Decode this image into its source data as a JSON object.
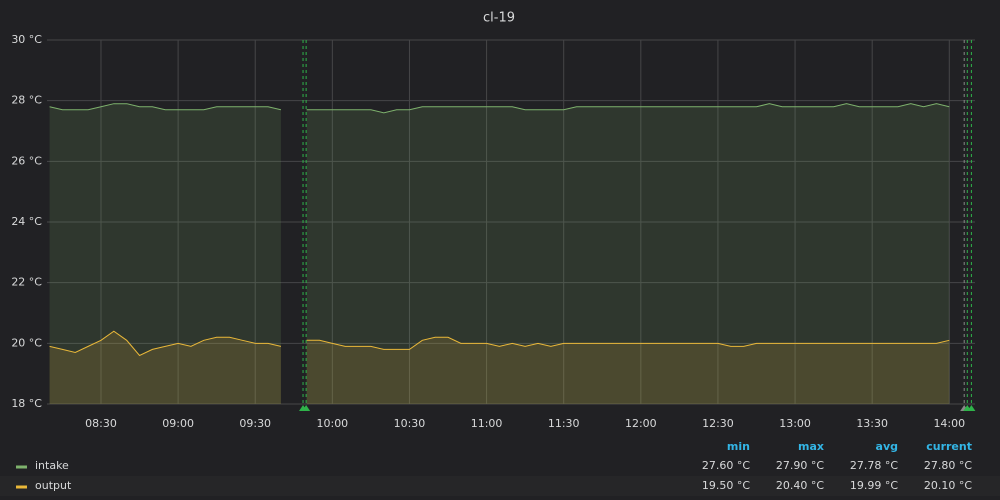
{
  "chart_data": {
    "type": "line",
    "title": "cl-19",
    "x": [
      490,
      495,
      500,
      505,
      510,
      515,
      520,
      525,
      530,
      535,
      540,
      545,
      550,
      555,
      560,
      565,
      570,
      575,
      580,
      585,
      590,
      595,
      600,
      605,
      610,
      615,
      620,
      625,
      630,
      635,
      640,
      645,
      650,
      655,
      660,
      665,
      670,
      675,
      680,
      685,
      690,
      695,
      700,
      705,
      710,
      715,
      720,
      725,
      730,
      735,
      740,
      745,
      750,
      755,
      760,
      765,
      770,
      775,
      780,
      785,
      790,
      795,
      800,
      805,
      810,
      815,
      820,
      825,
      830,
      835,
      840
    ],
    "series": [
      {
        "name": "intake",
        "color": "#7eb26d",
        "stats": [
          "27.60 °C",
          "27.90 °C",
          "27.78 °C",
          "27.80 °C"
        ],
        "values": [
          27.8,
          27.7,
          27.7,
          27.7,
          27.8,
          27.9,
          27.9,
          27.8,
          27.8,
          27.7,
          27.7,
          27.7,
          27.7,
          27.8,
          27.8,
          27.8,
          27.8,
          27.8,
          27.7,
          null,
          27.7,
          27.7,
          27.7,
          27.7,
          27.7,
          27.7,
          27.6,
          27.7,
          27.7,
          27.8,
          27.8,
          27.8,
          27.8,
          27.8,
          27.8,
          27.8,
          27.8,
          27.7,
          27.7,
          27.7,
          27.7,
          27.8,
          27.8,
          27.8,
          27.8,
          27.8,
          27.8,
          27.8,
          27.8,
          27.8,
          27.8,
          27.8,
          27.8,
          27.8,
          27.8,
          27.8,
          27.9,
          27.8,
          27.8,
          27.8,
          27.8,
          27.8,
          27.9,
          27.8,
          27.8,
          27.8,
          27.8,
          27.9,
          27.8,
          27.9,
          27.8
        ]
      },
      {
        "name": "output",
        "color": "#eab839",
        "stats": [
          "19.50 °C",
          "20.40 °C",
          "19.99 °C",
          "20.10 °C"
        ],
        "values": [
          19.9,
          19.8,
          19.7,
          19.9,
          20.1,
          20.4,
          20.1,
          19.6,
          19.8,
          19.9,
          20.0,
          19.9,
          20.1,
          20.2,
          20.2,
          20.1,
          20.0,
          20.0,
          19.9,
          null,
          20.1,
          20.1,
          20.0,
          19.9,
          19.9,
          19.9,
          19.8,
          19.8,
          19.8,
          20.1,
          20.2,
          20.2,
          20.0,
          20.0,
          20.0,
          19.9,
          20.0,
          19.9,
          20.0,
          19.9,
          20.0,
          20.0,
          20.0,
          20.0,
          20.0,
          20.0,
          20.0,
          20.0,
          20.0,
          20.0,
          20.0,
          20.0,
          20.0,
          19.9,
          19.9,
          20.0,
          20.0,
          20.0,
          20.0,
          20.0,
          20.0,
          20.0,
          20.0,
          20.0,
          20.0,
          20.0,
          20.0,
          20.0,
          20.0,
          20.0,
          20.1
        ]
      }
    ],
    "xlim": [
      489,
      850
    ],
    "xticks": [
      {
        "value": 510,
        "label": "08:30"
      },
      {
        "value": 540,
        "label": "09:00"
      },
      {
        "value": 570,
        "label": "09:30"
      },
      {
        "value": 600,
        "label": "10:00"
      },
      {
        "value": 630,
        "label": "10:30"
      },
      {
        "value": 660,
        "label": "11:00"
      },
      {
        "value": 690,
        "label": "11:30"
      },
      {
        "value": 720,
        "label": "12:00"
      },
      {
        "value": 750,
        "label": "12:30"
      },
      {
        "value": 780,
        "label": "13:00"
      },
      {
        "value": 810,
        "label": "13:30"
      },
      {
        "value": 840,
        "label": "14:00"
      }
    ],
    "ylim": [
      18,
      30
    ],
    "yticks": [
      {
        "value": 18,
        "label": "18 °C"
      },
      {
        "value": 20,
        "label": "20 °C"
      },
      {
        "value": 22,
        "label": "22 °C"
      },
      {
        "value": 24,
        "label": "24 °C"
      },
      {
        "value": 26,
        "label": "26 °C"
      },
      {
        "value": 28,
        "label": "28 °C"
      },
      {
        "value": 30,
        "label": "30 °C"
      }
    ],
    "grid": true,
    "annotations": [
      {
        "x": 588.6,
        "color": "#2fb34a"
      },
      {
        "x": 589.8,
        "color": "#2fb34a"
      },
      {
        "x": 845.8,
        "color": "#888888"
      },
      {
        "x": 847,
        "color": "#2fb34a"
      },
      {
        "x": 848.6,
        "color": "#2fb34a"
      }
    ],
    "legend": {
      "columns": [
        "min",
        "max",
        "avg",
        "current"
      ]
    }
  }
}
